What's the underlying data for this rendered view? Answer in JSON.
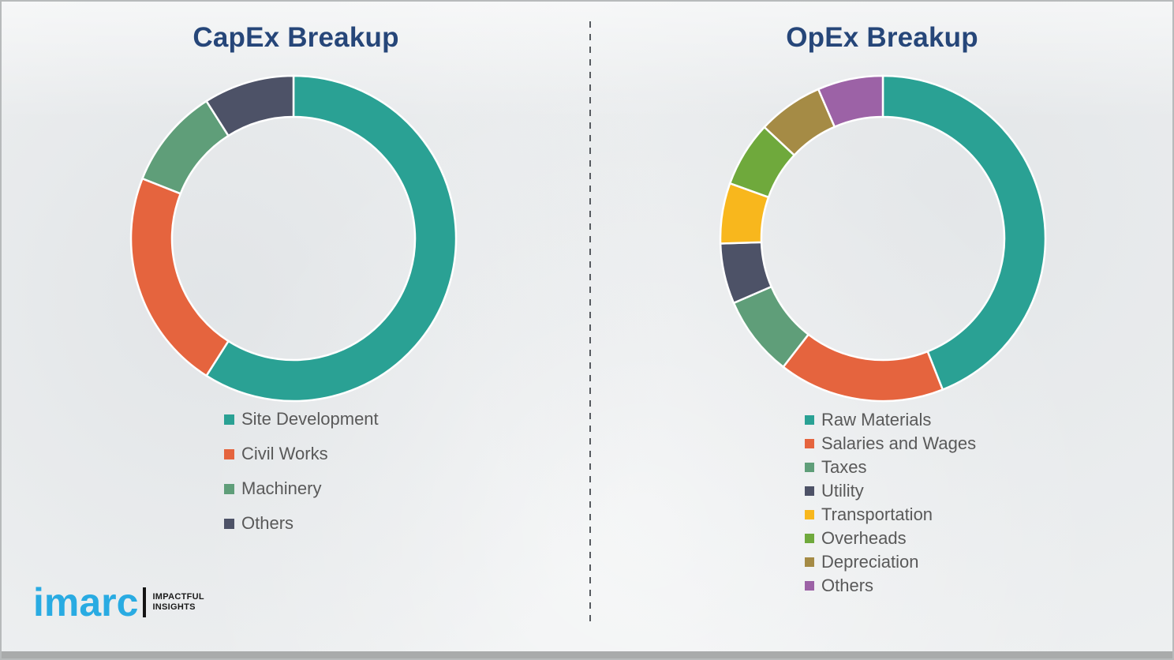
{
  "page": {
    "background_color": "#eef0f1",
    "divider_color": "#55595e",
    "title_color": "#264679",
    "legend_text_color": "#595959",
    "bottom_strip_color": "#a9abab"
  },
  "logo": {
    "brand": "imarc",
    "tagline_line1": "IMPACTFUL",
    "tagline_line2": "INSIGHTS",
    "brand_color": "#29abe2"
  },
  "chart_data": [
    {
      "type": "pie",
      "variant": "donut",
      "title": "CapEx Breakup",
      "legend_position": "bottom",
      "start_angle_deg": 0,
      "direction": "clockwise",
      "categories": [
        "Site Development",
        "Civil Works",
        "Machinery",
        "Others"
      ],
      "values": [
        59,
        22,
        10,
        9
      ],
      "colors": [
        "#2aa194",
        "#e5643e",
        "#5f9e79",
        "#4d5267"
      ]
    },
    {
      "type": "pie",
      "variant": "donut",
      "title": "OpEx Breakup",
      "legend_position": "bottom",
      "start_angle_deg": 0,
      "direction": "clockwise",
      "categories": [
        "Raw Materials",
        "Salaries and Wages",
        "Taxes",
        "Utility",
        "Transportation",
        "Overheads",
        "Depreciation",
        "Others"
      ],
      "values": [
        44,
        16.5,
        8,
        6,
        6,
        6.5,
        6.5,
        6.5
      ],
      "colors": [
        "#2aa194",
        "#e5643e",
        "#5f9e79",
        "#4d5267",
        "#f8b71d",
        "#6fa93c",
        "#a58b45",
        "#9c62a6"
      ]
    }
  ]
}
